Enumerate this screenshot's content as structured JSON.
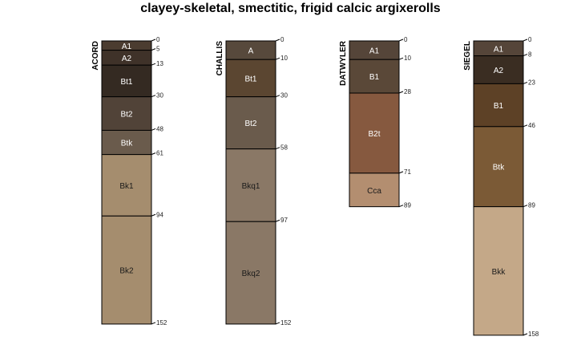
{
  "chart_data": {
    "type": "soil-profile",
    "title": "clayey-skeletal, smectitic, frigid calcic argixerolls",
    "depth_units": "cm",
    "profiles": [
      {
        "name": "ACORD",
        "horizons": [
          {
            "name": "A1",
            "top": 0,
            "bottom": 5,
            "color": "#4b3c30"
          },
          {
            "name": "A2",
            "top": 5,
            "bottom": 13,
            "color": "#3f3229"
          },
          {
            "name": "Bt1",
            "top": 13,
            "bottom": 30,
            "color": "#342a22"
          },
          {
            "name": "Bt2",
            "top": 30,
            "bottom": 48,
            "color": "#514338"
          },
          {
            "name": "Btk",
            "top": 48,
            "bottom": 61,
            "color": "#6a5b4c"
          },
          {
            "name": "Bk1",
            "top": 61,
            "bottom": 94,
            "color": "#a58d6e"
          },
          {
            "name": "Bk2",
            "top": 94,
            "bottom": 152,
            "color": "#a58d6e"
          }
        ],
        "depth_labels": [
          "0",
          "5",
          "13",
          "30",
          "48",
          "61",
          "94",
          "152"
        ]
      },
      {
        "name": "CHALLIS",
        "horizons": [
          {
            "name": "A",
            "top": 0,
            "bottom": 10,
            "color": "#57493c"
          },
          {
            "name": "Bt1",
            "top": 10,
            "bottom": 30,
            "color": "#5b4631"
          },
          {
            "name": "Bt2",
            "top": 30,
            "bottom": 58,
            "color": "#6a5b4c"
          },
          {
            "name": "Bkq1",
            "top": 58,
            "bottom": 97,
            "color": "#8a7866"
          },
          {
            "name": "Bkq2",
            "top": 97,
            "bottom": 152,
            "color": "#8a7866"
          }
        ],
        "depth_labels": [
          "0",
          "10",
          "30",
          "58",
          "97",
          "152"
        ]
      },
      {
        "name": "DATWYLER",
        "horizons": [
          {
            "name": "A1",
            "top": 0,
            "bottom": 10,
            "color": "#554539"
          },
          {
            "name": "B1",
            "top": 10,
            "bottom": 28,
            "color": "#5a4838"
          },
          {
            "name": "B2t",
            "top": 28,
            "bottom": 71,
            "color": "#86593f"
          },
          {
            "name": "Cca",
            "top": 71,
            "bottom": 89,
            "color": "#b38e70"
          }
        ],
        "depth_labels": [
          "0",
          "10",
          "28",
          "71",
          "89"
        ]
      },
      {
        "name": "SIEGEL",
        "horizons": [
          {
            "name": "A1",
            "top": 0,
            "bottom": 8,
            "color": "#554539"
          },
          {
            "name": "A2",
            "top": 8,
            "bottom": 23,
            "color": "#3a2d22"
          },
          {
            "name": "B1",
            "top": 23,
            "bottom": 46,
            "color": "#5d4126"
          },
          {
            "name": "Btk",
            "top": 46,
            "bottom": 89,
            "color": "#7b5a36"
          },
          {
            "name": "Bkk",
            "top": 89,
            "bottom": 158,
            "color": "#c4a888"
          }
        ],
        "depth_labels": [
          "0",
          "8",
          "23",
          "46",
          "89",
          "158"
        ]
      }
    ]
  }
}
